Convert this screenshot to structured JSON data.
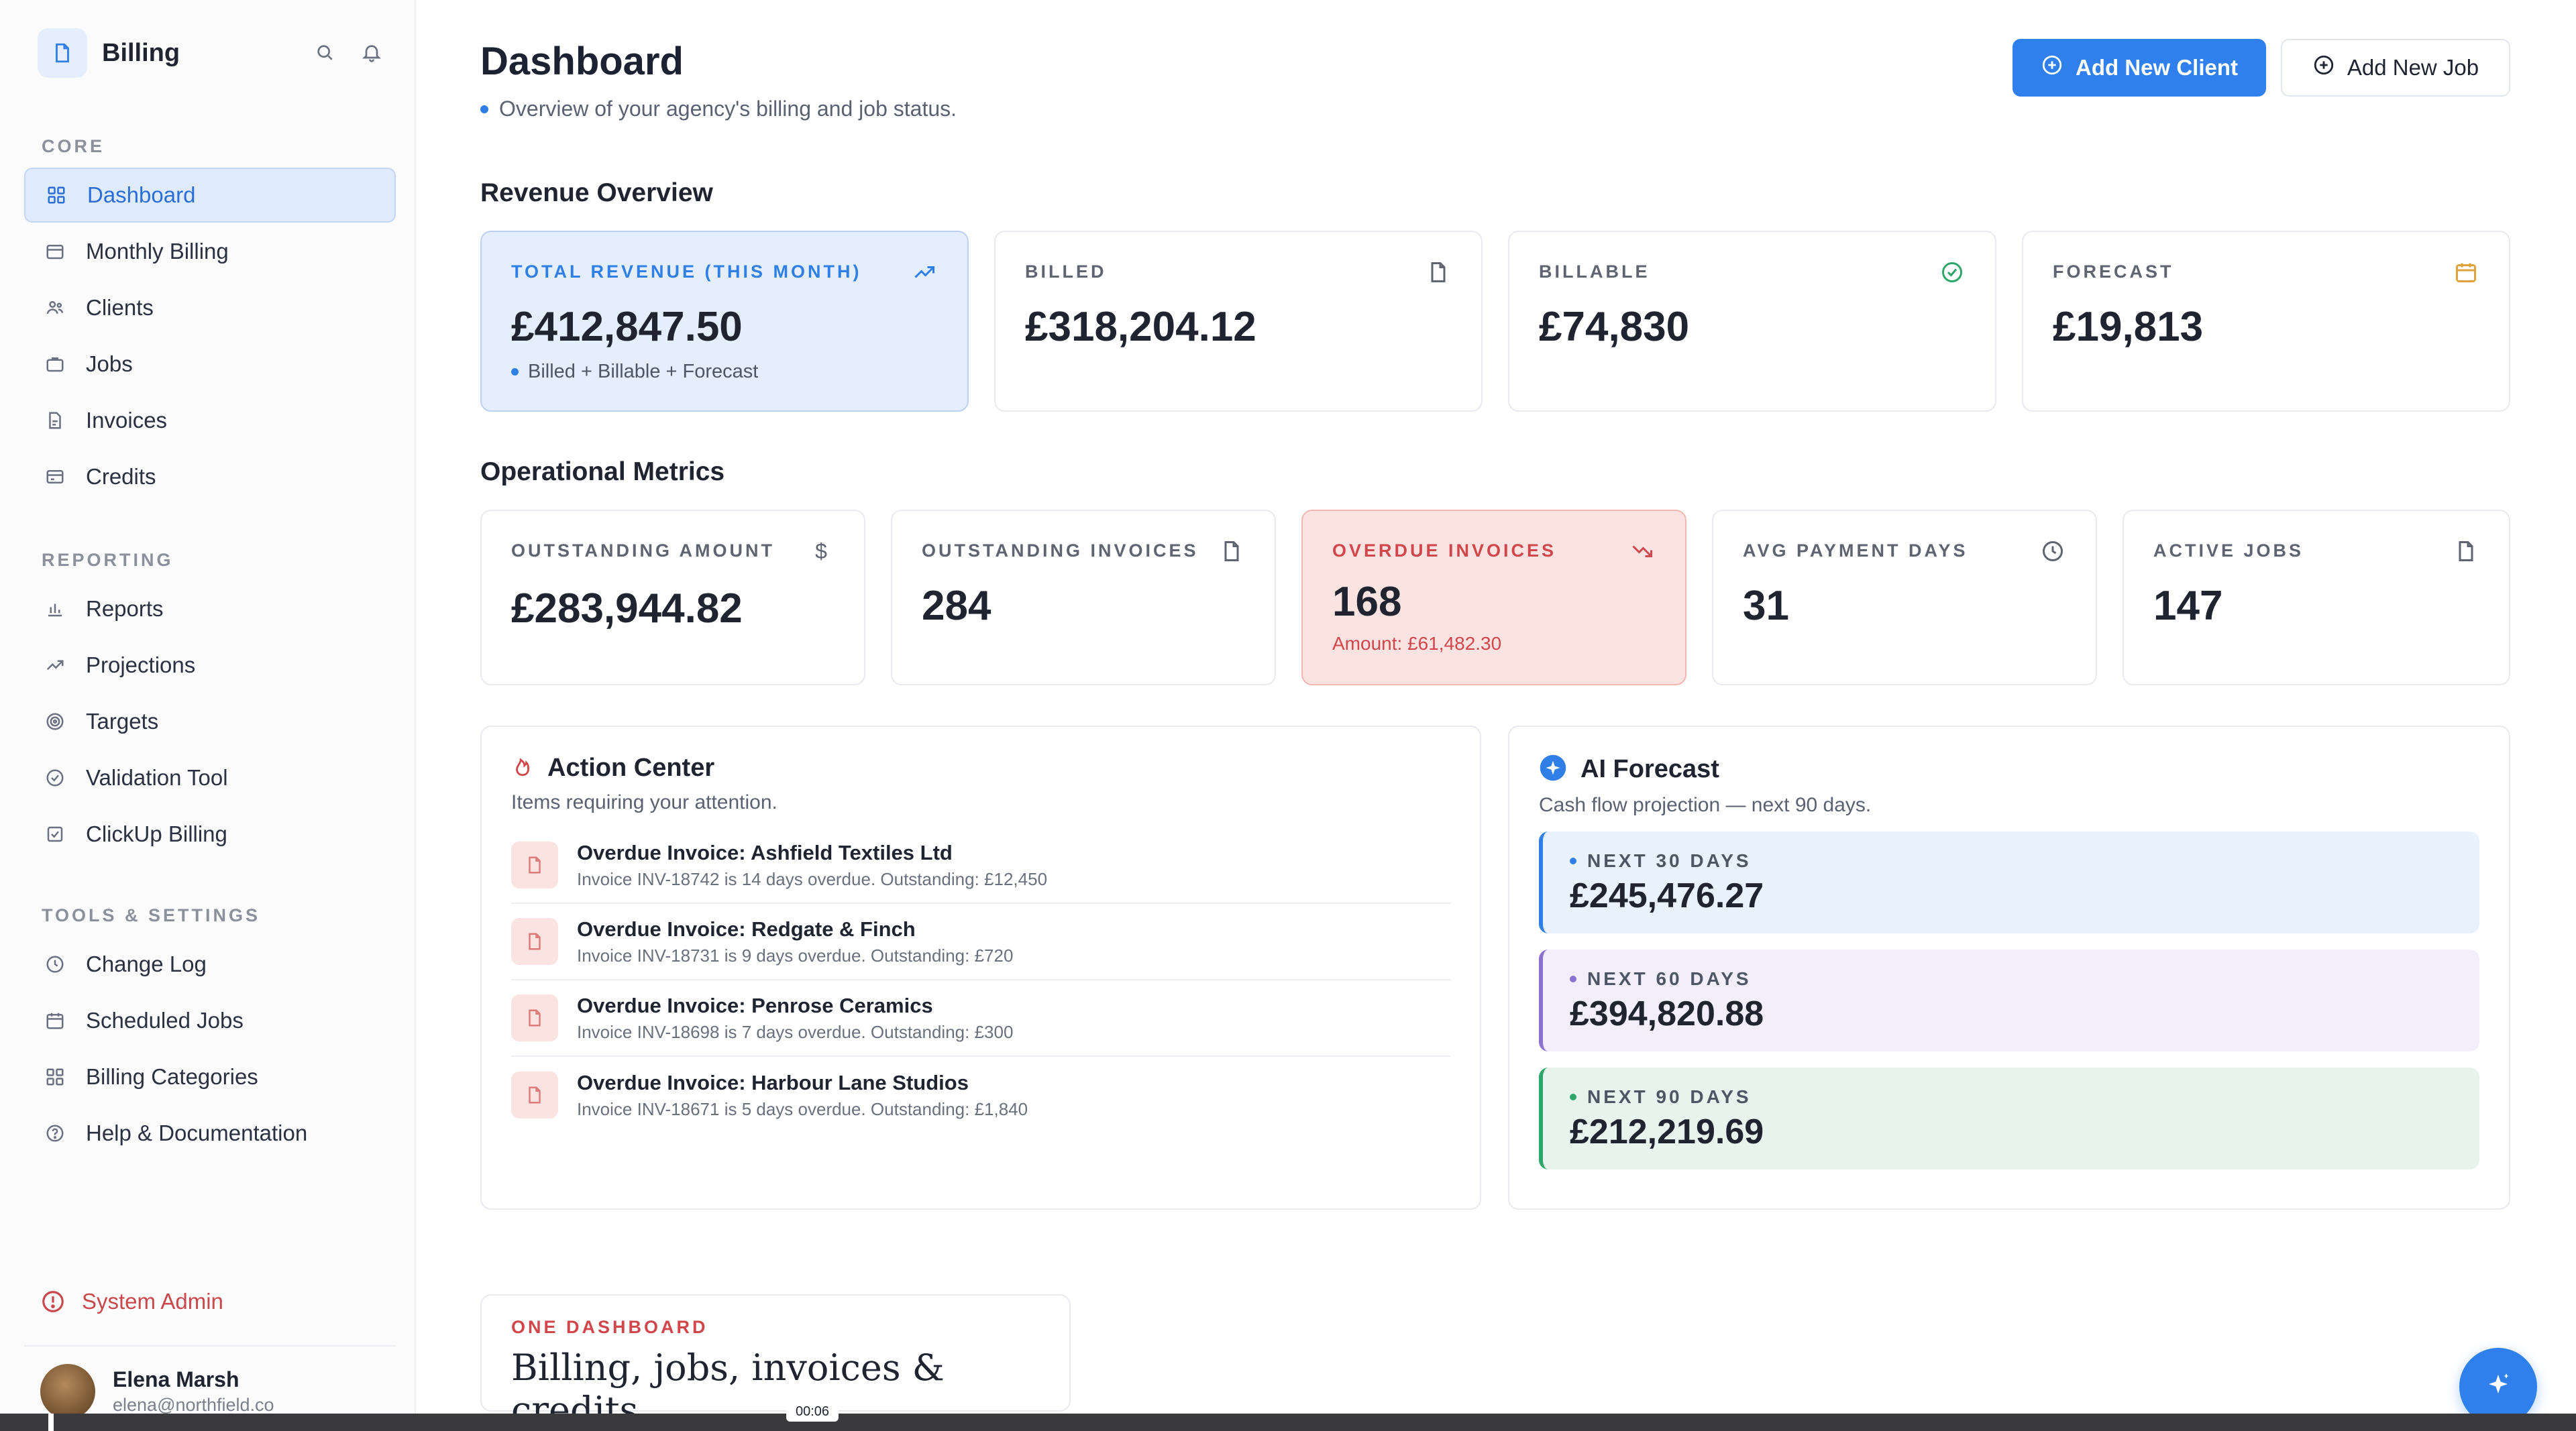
{
  "brand": {
    "name": "Billing"
  },
  "sidebar": {
    "sections": [
      {
        "heading": "CORE",
        "items": [
          {
            "label": "Dashboard",
            "icon": "grid-icon",
            "active": true
          },
          {
            "label": "Monthly Billing",
            "icon": "calendar-card-icon"
          },
          {
            "label": "Clients",
            "icon": "users-icon"
          },
          {
            "label": "Jobs",
            "icon": "briefcase-icon"
          },
          {
            "label": "Invoices",
            "icon": "document-icon"
          },
          {
            "label": "Credits",
            "icon": "card-icon"
          }
        ]
      },
      {
        "heading": "REPORTING",
        "items": [
          {
            "label": "Reports",
            "icon": "bar-chart-icon"
          },
          {
            "label": "Projections",
            "icon": "trend-up-icon"
          },
          {
            "label": "Targets",
            "icon": "target-icon"
          },
          {
            "label": "Validation Tool",
            "icon": "shield-check-icon"
          },
          {
            "label": "ClickUp Billing",
            "icon": "checkbox-icon"
          }
        ]
      },
      {
        "heading": "TOOLS & SETTINGS",
        "items": [
          {
            "label": "Change Log",
            "icon": "clock-icon"
          },
          {
            "label": "Scheduled Jobs",
            "icon": "calendar-icon"
          },
          {
            "label": "Billing Categories",
            "icon": "grid-icon"
          },
          {
            "label": "Help & Documentation",
            "icon": "help-icon"
          }
        ]
      }
    ],
    "system_admin": "System Admin",
    "user": {
      "name": "Elena Marsh",
      "email": "elena@northfield.co"
    }
  },
  "header": {
    "title": "Dashboard",
    "subtitle": "Overview of your agency's billing and job status.",
    "add_client": "Add New Client",
    "add_job": "Add New Job"
  },
  "revenue": {
    "title": "Revenue Overview",
    "cards": [
      {
        "label": "TOTAL REVENUE (THIS MONTH)",
        "value": "£412,847.50",
        "note": "Billed + Billable + Forecast",
        "icon": "trend-up-icon"
      },
      {
        "label": "BILLED",
        "value": "£318,204.12",
        "icon": "document-icon"
      },
      {
        "label": "BILLABLE",
        "value": "£74,830",
        "icon": "check-circle-icon"
      },
      {
        "label": "FORECAST",
        "value": "£19,813",
        "icon": "calendar-icon"
      }
    ]
  },
  "operational": {
    "title": "Operational Metrics",
    "cards": [
      {
        "label": "OUTSTANDING AMOUNT",
        "value": "£283,944.82",
        "icon": "dollar-icon"
      },
      {
        "label": "OUTSTANDING INVOICES",
        "value": "284",
        "icon": "document-icon"
      },
      {
        "label": "OVERDUE INVOICES",
        "value": "168",
        "note": "Amount: £61,482.30",
        "icon": "trend-down-icon"
      },
      {
        "label": "AVG PAYMENT DAYS",
        "value": "31",
        "icon": "clock-icon"
      },
      {
        "label": "ACTIVE JOBS",
        "value": "147",
        "icon": "document-icon"
      }
    ]
  },
  "action_center": {
    "title": "Action Center",
    "subtitle": "Items requiring your attention.",
    "items": [
      {
        "title": "Overdue Invoice: Ashfield Textiles Ltd",
        "desc": "Invoice INV-18742 is 14 days overdue. Outstanding: £12,450"
      },
      {
        "title": "Overdue Invoice: Redgate & Finch",
        "desc": "Invoice INV-18731 is 9 days overdue. Outstanding: £720"
      },
      {
        "title": "Overdue Invoice: Penrose Ceramics",
        "desc": "Invoice INV-18698 is 7 days overdue. Outstanding: £300"
      },
      {
        "title": "Overdue Invoice: Harbour Lane Studios",
        "desc": "Invoice INV-18671 is 5 days overdue. Outstanding: £1,840"
      }
    ]
  },
  "forecast": {
    "title": "AI Forecast",
    "subtitle": "Cash flow projection — next 90 days.",
    "rows": [
      {
        "label": "NEXT 30 DAYS",
        "value": "£245,476.27",
        "color": "#2f7fe6"
      },
      {
        "label": "NEXT 60 DAYS",
        "value": "£394,820.88",
        "color": "#8b6fd1"
      },
      {
        "label": "NEXT 90 DAYS",
        "value": "£212,219.69",
        "color": "#2ea66a"
      }
    ]
  },
  "promo": {
    "kicker": "ONE DASHBOARD",
    "text": "Billing, jobs, invoices & credits."
  },
  "video": {
    "time": "00:06"
  },
  "colors": {
    "accent": "#2f80ed",
    "danger": "#d0464a",
    "highlight_bg": "#e4eefc"
  }
}
